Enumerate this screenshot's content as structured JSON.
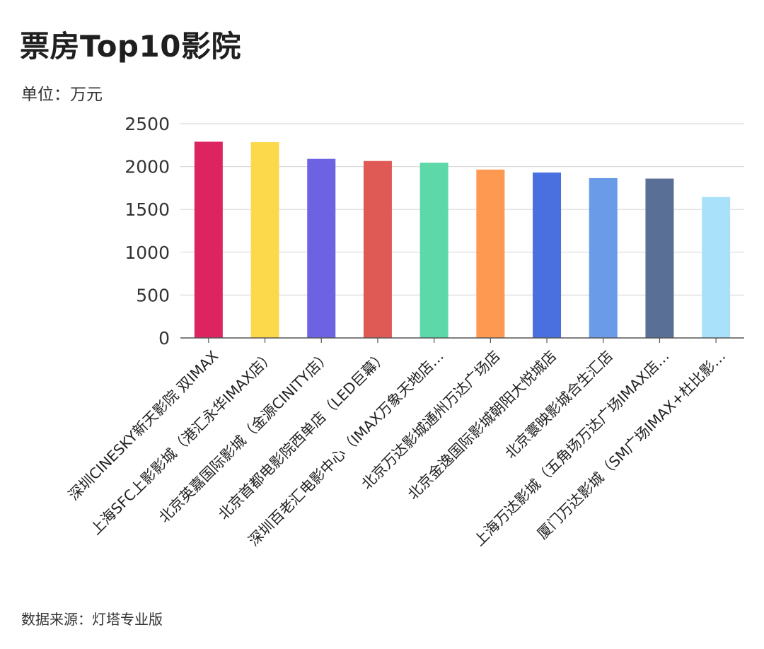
{
  "title": "票房Top10影院",
  "unit_label": "单位：万元",
  "source_label": "数据来源：灯塔专业版",
  "chart_data": {
    "type": "bar",
    "categories": [
      "深圳CINESKY新天影院 双IMAX",
      "上海SFC上影影城（港汇永华IMAX店）",
      "北京英嘉国际影城（金源CINITY店）",
      "北京首都电影院西单店（LED巨幕）",
      "深圳百老汇电影中心（IMAX万象天地店…",
      "北京万达影城通州万达广场店",
      "北京金逸国际影城朝阳大悦城店",
      "北京寰映影城合生汇店",
      "上海万达影城（五角场万达广场IMAX店…",
      "厦门万达影城（SM广场IMAX+杜比影…"
    ],
    "values": [
      2290,
      2285,
      2090,
      2065,
      2045,
      1965,
      1930,
      1865,
      1860,
      1645
    ],
    "colors": [
      "#dc2461",
      "#fcd94a",
      "#6c62e2",
      "#e05a55",
      "#5dd8a8",
      "#fd9950",
      "#4a70e0",
      "#6a9be8",
      "#5a6f96",
      "#a9e1fb"
    ],
    "ylim": [
      0,
      2500
    ],
    "yticks": [
      0,
      500,
      1000,
      1500,
      2000,
      2500
    ],
    "grid": true,
    "xlabel": "",
    "ylabel": ""
  }
}
